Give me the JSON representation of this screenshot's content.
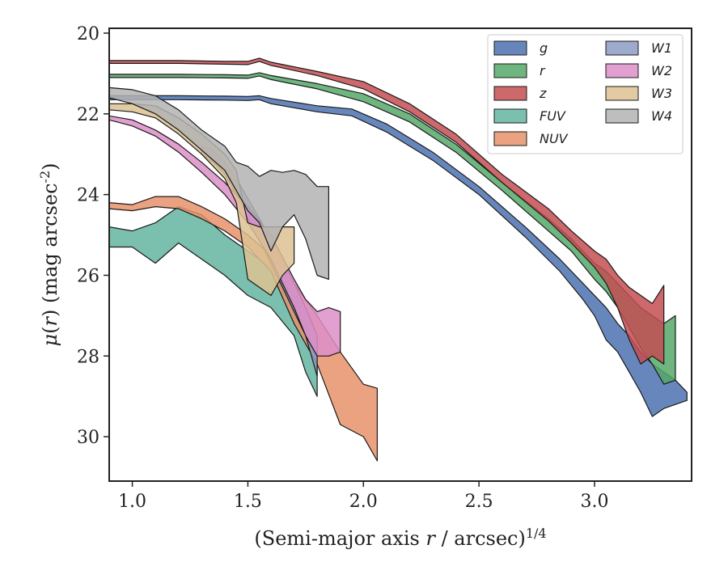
{
  "chart_data": {
    "type": "area",
    "xlabel": "(Semi-major axis $r$ / arcsec)$^{1/4}$",
    "ylabel": "$\\mu(r)$ (mag arcsec$^{-2}$)",
    "xlim": [
      0.9,
      3.42
    ],
    "ylim": [
      31.1,
      19.88
    ],
    "y_inverted": true,
    "x_ticks": [
      1.0,
      1.5,
      2.0,
      2.5,
      3.0
    ],
    "x_tick_labels": [
      "1.0",
      "1.5",
      "2.0",
      "2.5",
      "3.0"
    ],
    "y_ticks": [
      20,
      22,
      24,
      26,
      28,
      30
    ],
    "y_tick_labels": [
      "20",
      "22",
      "24",
      "26",
      "28",
      "30"
    ],
    "legend_position": "upper right",
    "legend_columns": 2,
    "series": [
      {
        "name": "g",
        "color": "#4c72b0",
        "x": [
          0.9,
          1.2,
          1.4,
          1.5,
          1.55,
          1.6,
          1.8,
          1.95,
          2.1,
          2.3,
          2.5,
          2.7,
          2.85,
          2.95,
          3.0,
          3.05,
          3.1,
          3.15,
          3.2,
          3.25,
          3.3,
          3.35,
          3.4
        ],
        "lo": [
          21.55,
          21.55,
          21.56,
          21.57,
          21.55,
          21.62,
          21.8,
          21.88,
          22.25,
          22.95,
          23.8,
          24.8,
          25.6,
          26.2,
          26.5,
          26.8,
          27.2,
          27.5,
          27.9,
          28.2,
          28.4,
          28.6,
          28.9
        ],
        "hi": [
          21.65,
          21.65,
          21.66,
          21.67,
          21.65,
          21.75,
          21.95,
          22.05,
          22.45,
          23.15,
          24.0,
          25.05,
          25.9,
          26.6,
          27.0,
          27.6,
          27.9,
          28.4,
          28.9,
          29.5,
          29.3,
          29.2,
          29.1
        ]
      },
      {
        "name": "r",
        "color": "#55a868",
        "x": [
          0.9,
          1.2,
          1.4,
          1.5,
          1.55,
          1.6,
          1.8,
          2.0,
          2.2,
          2.4,
          2.6,
          2.8,
          2.9,
          3.0,
          3.05,
          3.1,
          3.15,
          3.2,
          3.25,
          3.3,
          3.35
        ],
        "lo": [
          21.02,
          21.02,
          21.03,
          21.04,
          20.98,
          21.05,
          21.25,
          21.5,
          22.0,
          22.75,
          23.7,
          24.6,
          25.1,
          25.7,
          25.9,
          26.2,
          26.5,
          26.8,
          27.0,
          27.2,
          27.0
        ],
        "hi": [
          21.1,
          21.1,
          21.11,
          21.12,
          21.06,
          21.15,
          21.38,
          21.7,
          22.2,
          22.95,
          23.9,
          24.9,
          25.4,
          26.1,
          26.4,
          26.8,
          27.3,
          27.8,
          28.2,
          28.7,
          28.6
        ]
      },
      {
        "name": "z",
        "color": "#c44e52",
        "x": [
          0.9,
          1.2,
          1.4,
          1.5,
          1.55,
          1.6,
          1.8,
          2.0,
          2.2,
          2.4,
          2.6,
          2.8,
          2.9,
          3.0,
          3.05,
          3.1,
          3.15,
          3.2,
          3.25,
          3.3
        ],
        "lo": [
          20.68,
          20.68,
          20.7,
          20.7,
          20.62,
          20.72,
          20.95,
          21.2,
          21.75,
          22.5,
          23.5,
          24.35,
          24.9,
          25.4,
          25.6,
          26.0,
          26.3,
          26.5,
          26.7,
          26.25
        ],
        "hi": [
          20.75,
          20.75,
          20.77,
          20.78,
          20.7,
          20.8,
          21.05,
          21.38,
          21.95,
          22.7,
          23.7,
          24.65,
          25.2,
          25.8,
          26.2,
          26.8,
          27.6,
          28.2,
          28.0,
          28.2
        ]
      },
      {
        "name": "FUV",
        "color": "#64b5a0",
        "x": [
          0.9,
          1.0,
          1.1,
          1.2,
          1.3,
          1.4,
          1.5,
          1.6,
          1.7,
          1.75,
          1.8
        ],
        "lo": [
          24.8,
          24.9,
          24.7,
          24.3,
          24.5,
          25.0,
          25.4,
          25.8,
          26.8,
          27.5,
          28.0
        ],
        "hi": [
          25.3,
          25.3,
          25.7,
          25.2,
          25.6,
          26.0,
          26.5,
          26.8,
          27.5,
          28.4,
          29.0
        ]
      },
      {
        "name": "NUV",
        "color": "#e8926b",
        "x": [
          0.9,
          1.0,
          1.1,
          1.2,
          1.3,
          1.4,
          1.5,
          1.6,
          1.7,
          1.8,
          1.9,
          2.0,
          2.06
        ],
        "lo": [
          24.2,
          24.25,
          24.05,
          24.05,
          24.3,
          24.6,
          25.0,
          25.5,
          26.2,
          27.0,
          27.9,
          28.7,
          28.8
        ],
        "hi": [
          24.35,
          24.4,
          24.3,
          24.35,
          24.6,
          24.9,
          25.3,
          25.9,
          27.2,
          28.2,
          29.7,
          30.0,
          30.6
        ]
      },
      {
        "name": "W1",
        "color": "#8c9ac4",
        "x": [
          1.3,
          1.35,
          1.4,
          1.45,
          1.5,
          1.55,
          1.6,
          1.65,
          1.7,
          1.75,
          1.8
        ],
        "lo": [
          22.8,
          22.9,
          23.2,
          23.6,
          24.1,
          24.6,
          25.1,
          25.6,
          26.2,
          26.8,
          27.5
        ],
        "hi": [
          23.0,
          23.2,
          23.5,
          24.0,
          24.6,
          25.1,
          25.7,
          26.3,
          26.9,
          27.5,
          28.5
        ]
      },
      {
        "name": "W2",
        "color": "#dd8fc8",
        "x": [
          0.9,
          1.0,
          1.1,
          1.2,
          1.3,
          1.4,
          1.5,
          1.6,
          1.7,
          1.75,
          1.8,
          1.85,
          1.9
        ],
        "lo": [
          22.05,
          22.15,
          22.4,
          22.75,
          23.2,
          23.7,
          24.3,
          25.0,
          26.1,
          26.6,
          26.9,
          26.8,
          26.9
        ],
        "hi": [
          22.15,
          22.3,
          22.55,
          22.95,
          23.45,
          24.0,
          24.7,
          25.6,
          26.8,
          27.5,
          28.0,
          28.0,
          27.9
        ]
      },
      {
        "name": "W3",
        "color": "#ddc293",
        "x": [
          0.9,
          1.0,
          1.1,
          1.2,
          1.3,
          1.4,
          1.45,
          1.5,
          1.55,
          1.6,
          1.65,
          1.7
        ],
        "lo": [
          21.75,
          21.75,
          21.8,
          22.1,
          22.5,
          23.0,
          23.4,
          24.7,
          24.8,
          24.8,
          24.8,
          24.8
        ],
        "hi": [
          21.9,
          21.95,
          22.1,
          22.5,
          23.0,
          23.6,
          24.2,
          26.1,
          26.3,
          26.5,
          26.0,
          25.7
        ]
      },
      {
        "name": "W4",
        "color": "#b3b3b3",
        "x": [
          0.9,
          1.0,
          1.1,
          1.2,
          1.3,
          1.4,
          1.45,
          1.5,
          1.55,
          1.6,
          1.65,
          1.7,
          1.75,
          1.8,
          1.85
        ],
        "lo": [
          21.35,
          21.4,
          21.55,
          21.9,
          22.4,
          22.8,
          23.2,
          23.3,
          23.55,
          23.4,
          23.45,
          23.4,
          23.5,
          23.8,
          23.8
        ],
        "hi": [
          21.6,
          21.75,
          22.0,
          22.4,
          22.9,
          23.4,
          23.9,
          24.4,
          24.7,
          25.4,
          24.8,
          24.5,
          25.1,
          26.0,
          26.1
        ]
      }
    ]
  }
}
